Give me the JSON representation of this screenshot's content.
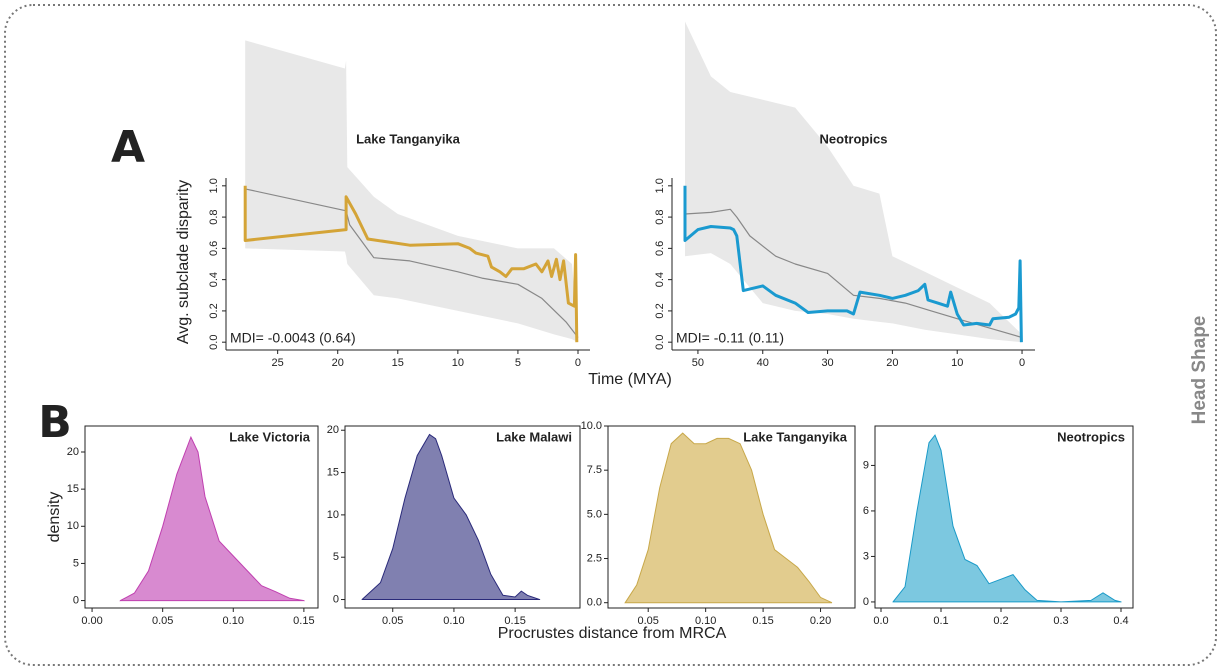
{
  "labels": {
    "panel_a": "A",
    "panel_b": "B",
    "side": "Head Shape",
    "disparity_axis": "Avg. subclade disparity",
    "time_axis": "Time (MYA)",
    "density_axis": "density",
    "distance_axis": "Procrustes distance from MRCA"
  },
  "chart_data": [
    {
      "type": "line",
      "title": "Lake Tanganyika",
      "annotation": "MDI= -0.0043 (0.64)",
      "xlim": [
        29.3,
        -1
      ],
      "xticks": [
        25,
        20,
        15,
        10,
        5,
        0
      ],
      "ylim": [
        -0.05,
        1.05
      ],
      "yticks": [
        {
          "value": 0,
          "label": "0.0"
        },
        0.2,
        0.4,
        0.6,
        0.8,
        {
          "value": 1,
          "label": "1.0"
        }
      ],
      "band": {
        "color": "#e8e8e8",
        "x": [
          27.7,
          19.4,
          19.3,
          19.2,
          17,
          15,
          10,
          5,
          2,
          0.5,
          0
        ],
        "upper": [
          1.93,
          1.75,
          1.8,
          1.12,
          0.93,
          0.82,
          0.68,
          0.6,
          0.6,
          0.5,
          0.05
        ],
        "lower": [
          0.6,
          0.58,
          0.55,
          0.5,
          0.3,
          0.28,
          0.2,
          0.12,
          0.05,
          0.02,
          0
        ]
      },
      "series": [
        {
          "color": "#888888",
          "x": [
            27.7,
            19.3,
            19,
            17,
            14,
            10,
            8,
            5,
            3,
            1,
            0
          ],
          "values": [
            0.98,
            0.84,
            0.75,
            0.54,
            0.52,
            0.45,
            0.41,
            0.37,
            0.28,
            0.13,
            0.03
          ]
        },
        {
          "color": "#d4a437",
          "x": [
            27.7,
            27.7,
            19.3,
            19.3,
            18.5,
            17.5,
            14,
            10,
            9,
            8.5,
            7.5,
            7.2,
            6.5,
            6,
            5.5,
            4.5,
            3.5,
            3,
            2.5,
            2.2,
            1.8,
            1.5,
            1.2,
            0.8,
            0.3,
            0.2,
            0.1
          ],
          "values": [
            1.0,
            0.65,
            0.72,
            0.93,
            0.82,
            0.66,
            0.62,
            0.63,
            0.6,
            0.57,
            0.55,
            0.48,
            0.45,
            0.42,
            0.47,
            0.47,
            0.5,
            0.45,
            0.52,
            0.42,
            0.53,
            0.4,
            0.52,
            0.25,
            0.23,
            0.56,
            0.0
          ]
        }
      ]
    },
    {
      "type": "line",
      "title": "Neotropics",
      "annotation": "MDI= -0.11 (0.11)",
      "xlim": [
        54,
        -2
      ],
      "xticks": [
        50,
        40,
        30,
        20,
        10,
        0
      ],
      "ylim": [
        -0.05,
        1.05
      ],
      "yticks": [
        {
          "value": 0,
          "label": "0.0"
        },
        0.2,
        0.4,
        0.6,
        0.8,
        {
          "value": 1,
          "label": "1.0"
        }
      ],
      "band": {
        "color": "#e8e8e8",
        "x": [
          52,
          48,
          45,
          40,
          35,
          30,
          26,
          22,
          20,
          15,
          10,
          5,
          0
        ],
        "upper": [
          2.05,
          1.7,
          1.6,
          1.55,
          1.5,
          1.25,
          1.0,
          0.95,
          0.55,
          0.45,
          0.35,
          0.25,
          0.05
        ],
        "lower": [
          0.55,
          0.57,
          0.5,
          0.25,
          0.2,
          0.18,
          0.15,
          0.13,
          0.12,
          0.08,
          0.05,
          0.02,
          0
        ]
      },
      "series": [
        {
          "color": "#888888",
          "x": [
            52,
            48,
            45,
            44,
            42,
            38,
            35,
            30,
            26,
            22,
            18,
            14,
            10,
            5,
            0
          ],
          "values": [
            0.82,
            0.83,
            0.85,
            0.8,
            0.68,
            0.55,
            0.5,
            0.44,
            0.3,
            0.28,
            0.25,
            0.2,
            0.15,
            0.09,
            0.03
          ]
        },
        {
          "color": "#1a9ad0",
          "x": [
            52,
            52,
            50,
            48,
            45,
            44.5,
            44,
            43,
            40,
            38,
            35,
            33,
            30,
            27,
            26,
            25,
            22,
            20,
            18,
            16,
            15,
            14.5,
            13,
            11.5,
            11,
            10,
            9,
            7,
            5,
            4.5,
            2,
            1,
            0.5,
            0.3,
            0.1
          ],
          "values": [
            1.0,
            0.65,
            0.72,
            0.74,
            0.73,
            0.72,
            0.68,
            0.33,
            0.36,
            0.3,
            0.25,
            0.19,
            0.2,
            0.2,
            0.18,
            0.32,
            0.3,
            0.28,
            0.3,
            0.33,
            0.37,
            0.27,
            0.25,
            0.23,
            0.32,
            0.18,
            0.11,
            0.12,
            0.11,
            0.15,
            0.16,
            0.18,
            0.22,
            0.52,
            0
          ]
        }
      ]
    },
    {
      "type": "area",
      "title": "Lake Victoria",
      "color": "#c040b0",
      "fill": "#d88ad0",
      "xlim": [
        -0.005,
        0.16
      ],
      "xticks": [
        {
          "value": 0,
          "label": "0.00"
        },
        0.05,
        {
          "value": 0.1,
          "label": "0.10"
        },
        0.15
      ],
      "ylim": [
        -1,
        23.5
      ],
      "yticks": [
        0,
        5,
        10,
        15,
        20
      ],
      "x": [
        0.02,
        0.03,
        0.04,
        0.05,
        0.06,
        0.07,
        0.075,
        0.08,
        0.09,
        0.1,
        0.11,
        0.12,
        0.13,
        0.14,
        0.15
      ],
      "values": [
        0,
        1,
        4,
        10,
        17,
        22,
        20,
        14,
        8,
        6,
        4,
        2,
        1.2,
        0.3,
        0
      ]
    },
    {
      "type": "area",
      "title": "Lake Malawi",
      "color": "#2a2a7a",
      "fill": "#8080b0",
      "xlim": [
        0.011,
        0.203
      ],
      "xticks": [
        0.05,
        {
          "value": 0.1,
          "label": "0.10"
        },
        0.15
      ],
      "ylim": [
        -1,
        20.5
      ],
      "yticks": [
        0,
        5,
        10,
        15,
        20
      ],
      "x": [
        0.025,
        0.04,
        0.05,
        0.06,
        0.07,
        0.08,
        0.085,
        0.09,
        0.1,
        0.11,
        0.12,
        0.13,
        0.14,
        0.15,
        0.155,
        0.16,
        0.17
      ],
      "values": [
        0,
        2,
        6,
        12,
        17,
        19.5,
        19,
        17,
        12,
        10,
        7,
        3,
        0.5,
        0.3,
        1,
        0.5,
        0
      ]
    },
    {
      "type": "area",
      "title": "Lake Tanganyika",
      "color": "#c8a84a",
      "fill": "#e2cc8e",
      "xlim": [
        0.015,
        0.23
      ],
      "xticks": [
        0.05,
        {
          "value": 0.1,
          "label": "0.10"
        },
        0.15,
        {
          "value": 0.2,
          "label": "0.20"
        }
      ],
      "ylim": [
        -0.3,
        10
      ],
      "yticks": [
        {
          "value": 0,
          "label": "0.0"
        },
        2.5,
        {
          "value": 5,
          "label": "5.0"
        },
        7.5,
        {
          "value": 10,
          "label": "10.0"
        }
      ],
      "x": [
        0.03,
        0.04,
        0.05,
        0.06,
        0.07,
        0.08,
        0.09,
        0.1,
        0.11,
        0.12,
        0.13,
        0.14,
        0.15,
        0.16,
        0.17,
        0.18,
        0.19,
        0.2,
        0.21
      ],
      "values": [
        0,
        1,
        3,
        6.5,
        9,
        9.6,
        9,
        9,
        9.3,
        9.3,
        9,
        7.5,
        5,
        3,
        2.5,
        2,
        1.2,
        0.3,
        0
      ]
    },
    {
      "type": "area",
      "title": "Neotropics",
      "color": "#1a9ac8",
      "fill": "#7cc8e0",
      "xlim": [
        -0.01,
        0.42
      ],
      "xticks": [
        {
          "value": 0,
          "label": "0.0"
        },
        0.1,
        0.2,
        0.3,
        0.4
      ],
      "ylim": [
        -0.4,
        11.6
      ],
      "yticks": [
        0,
        3,
        6,
        9
      ],
      "x": [
        0.02,
        0.04,
        0.06,
        0.08,
        0.09,
        0.1,
        0.12,
        0.14,
        0.16,
        0.18,
        0.2,
        0.22,
        0.24,
        0.26,
        0.3,
        0.35,
        0.37,
        0.39,
        0.4
      ],
      "values": [
        0,
        1,
        6,
        10.5,
        11,
        10,
        5,
        2.8,
        2.4,
        1.2,
        1.5,
        1.8,
        0.8,
        0.1,
        0,
        0.1,
        0.6,
        0.1,
        0
      ]
    }
  ]
}
